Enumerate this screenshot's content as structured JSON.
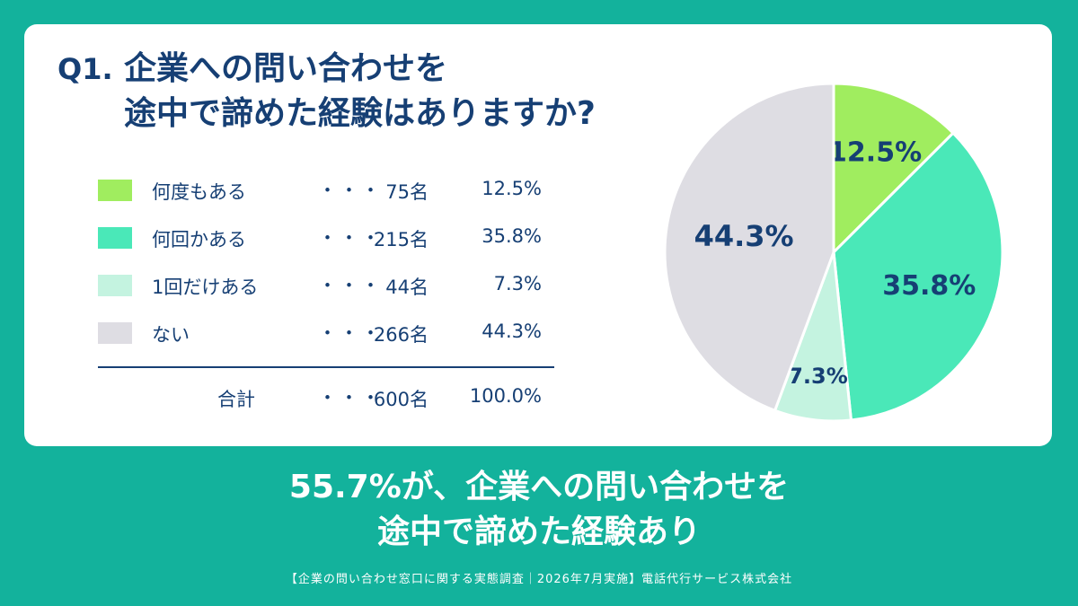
{
  "question": {
    "number": "Q1.",
    "line1": "企業への問い合わせを",
    "line2": "途中で諦めた経験はありますか?"
  },
  "separator": "・・・",
  "chart_data": {
    "type": "pie",
    "title": "企業への問い合わせを途中で諦めた経験はありますか?",
    "unit": "名",
    "slices": [
      {
        "label": "何度もある",
        "count": "75名",
        "percent_label": "12.5%",
        "value": 12.5,
        "color": "#a0ed5f"
      },
      {
        "label": "何回かある",
        "count": "215名",
        "percent_label": "35.8%",
        "value": 35.8,
        "color": "#4ae8b8"
      },
      {
        "label": "1回だけある",
        "count": "44名",
        "percent_label": "7.3%",
        "value": 7.3,
        "color": "#c4f3e0"
      },
      {
        "label": "ない",
        "count": "266名",
        "percent_label": "44.3%",
        "value": 44.3,
        "color": "#dedde3"
      }
    ],
    "total": {
      "label": "合計",
      "count": "600名",
      "percent_label": "100.0%"
    }
  },
  "headline": {
    "line1": "55.7%が、企業への問い合わせを",
    "line2": "途中で諦めた経験あり"
  },
  "footer": "【企業の問い合わせ窓口に関する実態調査｜2026年7月実施】電話代行サービス株式会社",
  "colors": {
    "background": "#13b29c",
    "text_dark": "#163f74",
    "card": "#ffffff"
  }
}
